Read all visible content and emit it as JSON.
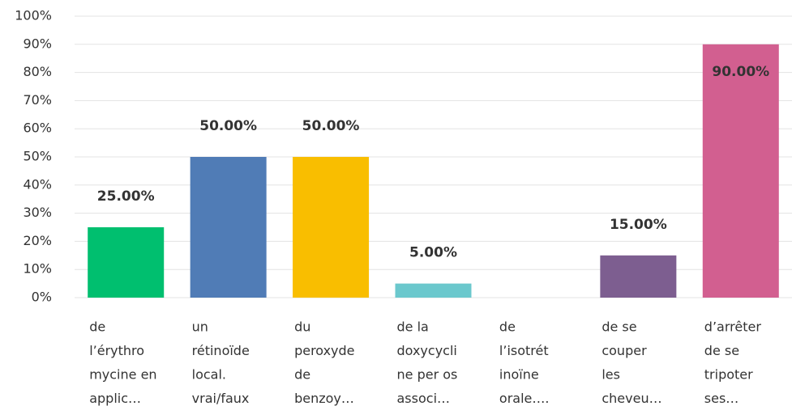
{
  "chart_data": {
    "type": "bar",
    "categories": [
      [
        "de",
        "l’érythro",
        "mycine en",
        "applic…"
      ],
      [
        "un",
        "rétinoïde",
        "local.",
        "vrai/faux"
      ],
      [
        "du",
        "peroxyde",
        "de",
        "benzoy…"
      ],
      [
        "de la",
        "doxycycli",
        "ne per os",
        "associ…"
      ],
      [
        "de",
        "l’isotrét",
        "inoïne",
        "orale…."
      ],
      [
        "de se",
        "couper",
        "les",
        "cheveu…"
      ],
      [
        "d’arrêter",
        "de se",
        "tripoter",
        "ses…"
      ]
    ],
    "values": [
      25,
      50,
      50,
      5,
      0,
      15,
      90
    ],
    "value_labels": [
      "25.00%",
      "50.00%",
      "50.00%",
      "5.00%",
      null,
      "15.00%",
      "90.00%"
    ],
    "colors": [
      "#00bf6f",
      "#507cb6",
      "#f9be00",
      "#6bc8cd",
      "#ff8b4f",
      "#7d5e90",
      "#d25f90"
    ],
    "ylim": [
      0,
      100
    ],
    "yticks": [
      {
        "value": 0,
        "label": "0%"
      },
      {
        "value": 10,
        "label": "10%"
      },
      {
        "value": 20,
        "label": "20%"
      },
      {
        "value": 30,
        "label": "30%"
      },
      {
        "value": 40,
        "label": "40%"
      },
      {
        "value": 50,
        "label": "50%"
      },
      {
        "value": 60,
        "label": "60%"
      },
      {
        "value": 70,
        "label": "70%"
      },
      {
        "value": 80,
        "label": "80%"
      },
      {
        "value": 90,
        "label": "90%"
      },
      {
        "value": 100,
        "label": "100%"
      }
    ],
    "grid": true
  }
}
